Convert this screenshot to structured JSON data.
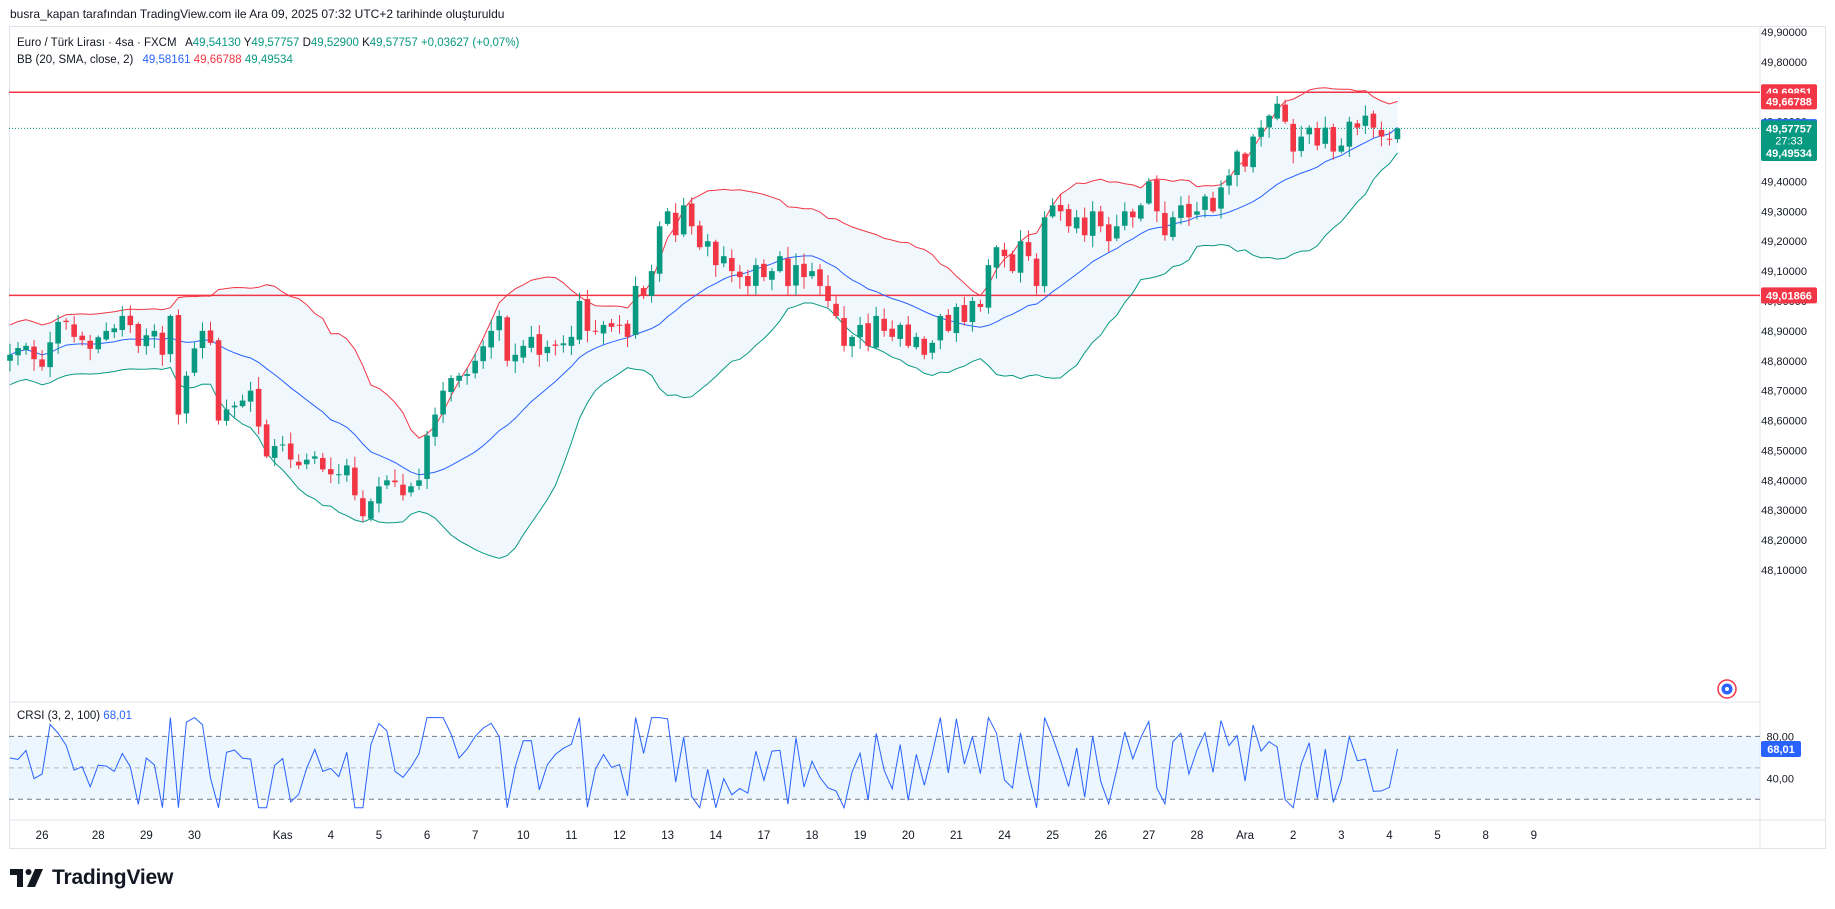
{
  "header": {
    "text": "busra_kapan tarafından TradingView.com ile Ara 09, 2025 07:32 UTC+2 tarihinde oluşturuldu"
  },
  "legend": {
    "symbol": "Euro / Türk Lirası · 4sa · FXCM",
    "open_label": "A",
    "open": "49,54130",
    "high_label": "Y",
    "high": "49,57757",
    "low_label": "D",
    "low": "49,52900",
    "close_label": "K",
    "close": "49,57757",
    "change": "+0,03627 (+0,07%)",
    "bb_label": "BB (20, SMA, close, 2)",
    "bb_basis": "49,58161",
    "bb_upper": "49,66788",
    "bb_lower": "49,49534"
  },
  "crsi_legend": {
    "label": "CRSI (3, 2, 100)",
    "value": "68,01"
  },
  "brand": {
    "name": "TradingView"
  },
  "colors": {
    "up": "#089981",
    "down": "#f23645",
    "basis": "#2962ff",
    "upper": "#f23645",
    "lower": "#089981",
    "band_fill": "#e3f2fd",
    "crsi": "#2962ff",
    "hline": "#f23645"
  },
  "chart_data": [
    {
      "type": "candlestick",
      "title": "Euro / Türk Lirası · 4sa · FXCM",
      "y_range": [
        48.03,
        49.95
      ],
      "y_ticks": [
        "49,90000",
        "49,80000",
        "49,70000",
        "49,60000",
        "49,50000",
        "49,40000",
        "49,30000",
        "49,20000",
        "49,10000",
        "49,00000",
        "48,90000",
        "48,80000",
        "48,70000",
        "48,60000",
        "48,50000",
        "48,40000",
        "48,30000",
        "48,20000",
        "48,10000"
      ],
      "y_tick_values": [
        49.9,
        49.8,
        49.7,
        49.6,
        49.5,
        49.4,
        49.3,
        49.2,
        49.1,
        49.0,
        48.9,
        48.8,
        48.7,
        48.6,
        48.5,
        48.4,
        48.3,
        48.2,
        48.1
      ],
      "x_labels": [
        "26",
        "28",
        "29",
        "30",
        "Kas",
        "4",
        "5",
        "6",
        "7",
        "10",
        "11",
        "12",
        "13",
        "14",
        "17",
        "18",
        "19",
        "20",
        "21",
        "24",
        "25",
        "26",
        "27",
        "28",
        "Ara",
        "2",
        "3",
        "4",
        "5",
        "8",
        "9"
      ],
      "x_label_bars": [
        4,
        11,
        17,
        23,
        34,
        40,
        46,
        52,
        58,
        64,
        70,
        76,
        82,
        88,
        94,
        100,
        106,
        112,
        118,
        124,
        130,
        136,
        142,
        148,
        154,
        160,
        166,
        172,
        178,
        184,
        190
      ],
      "horizontal_lines": [
        49.69851,
        49.01866
      ],
      "price_badges": [
        {
          "label": "49,69851",
          "value": 49.69851,
          "color": "#f23645"
        },
        {
          "label": "49,66788",
          "value": 49.66788,
          "color": "#f23645"
        },
        {
          "label": "49,58161",
          "value": 49.58161,
          "color": "#2962ff"
        },
        {
          "label": "49,57757",
          "sub": "27:33",
          "value": 49.57757,
          "color": "#089981"
        },
        {
          "label": "49,49534",
          "value": 49.49534,
          "color": "#089981"
        },
        {
          "label": "49,01866",
          "value": 49.01866,
          "color": "#f23645"
        }
      ],
      "bb_basis_last": 49.58161,
      "bb_upper_last": 49.66788,
      "bb_lower_last": 49.49534,
      "close_anchors": [
        [
          0,
          48.82
        ],
        [
          2,
          48.85
        ],
        [
          4,
          48.78
        ],
        [
          6,
          48.93
        ],
        [
          8,
          48.88
        ],
        [
          10,
          48.84
        ],
        [
          12,
          48.9
        ],
        [
          14,
          48.95
        ],
        [
          16,
          48.85
        ],
        [
          18,
          48.9
        ],
        [
          19,
          48.82
        ],
        [
          20,
          48.95
        ],
        [
          21,
          48.62
        ],
        [
          22,
          48.75
        ],
        [
          24,
          48.9
        ],
        [
          25,
          48.86
        ],
        [
          26,
          48.6
        ],
        [
          28,
          48.65
        ],
        [
          30,
          48.7
        ],
        [
          31,
          48.58
        ],
        [
          32,
          48.48
        ],
        [
          34,
          48.52
        ],
        [
          36,
          48.45
        ],
        [
          38,
          48.48
        ],
        [
          40,
          48.42
        ],
        [
          42,
          48.45
        ],
        [
          43,
          48.35
        ],
        [
          44,
          48.28
        ],
        [
          45,
          48.33
        ],
        [
          47,
          48.4
        ],
        [
          49,
          48.35
        ],
        [
          50,
          48.38
        ],
        [
          51,
          48.4
        ],
        [
          52,
          48.55
        ],
        [
          53,
          48.62
        ],
        [
          54,
          48.7
        ],
        [
          56,
          48.75
        ],
        [
          58,
          48.8
        ],
        [
          60,
          48.9
        ],
        [
          61,
          48.95
        ],
        [
          62,
          48.8
        ],
        [
          63,
          48.82
        ],
        [
          64,
          48.85
        ],
        [
          65,
          48.88
        ],
        [
          66,
          48.82
        ],
        [
          68,
          48.85
        ],
        [
          70,
          48.88
        ],
        [
          71,
          49.0
        ],
        [
          72,
          48.9
        ],
        [
          74,
          48.92
        ],
        [
          76,
          48.92
        ],
        [
          77,
          48.88
        ],
        [
          78,
          49.05
        ],
        [
          79,
          49.02
        ],
        [
          80,
          49.1
        ],
        [
          81,
          49.25
        ],
        [
          82,
          49.3
        ],
        [
          83,
          49.22
        ],
        [
          84,
          49.32
        ],
        [
          85,
          49.25
        ],
        [
          86,
          49.18
        ],
        [
          87,
          49.2
        ],
        [
          88,
          49.12
        ],
        [
          89,
          49.15
        ],
        [
          90,
          49.1
        ],
        [
          91,
          49.08
        ],
        [
          92,
          49.05
        ],
        [
          93,
          49.12
        ],
        [
          94,
          49.08
        ],
        [
          95,
          49.1
        ],
        [
          96,
          49.15
        ],
        [
          97,
          49.05
        ],
        [
          98,
          49.12
        ],
        [
          99,
          49.08
        ],
        [
          100,
          49.1
        ],
        [
          101,
          49.05
        ],
        [
          102,
          49.0
        ],
        [
          103,
          48.95
        ],
        [
          104,
          48.85
        ],
        [
          105,
          48.88
        ],
        [
          106,
          48.92
        ],
        [
          107,
          48.85
        ],
        [
          108,
          48.95
        ],
        [
          109,
          48.9
        ],
        [
          110,
          48.88
        ],
        [
          111,
          48.92
        ],
        [
          112,
          48.85
        ],
        [
          113,
          48.88
        ],
        [
          114,
          48.82
        ],
        [
          115,
          48.86
        ],
        [
          116,
          48.95
        ],
        [
          117,
          48.9
        ],
        [
          118,
          48.98
        ],
        [
          119,
          48.93
        ],
        [
          120,
          49.0
        ],
        [
          121,
          48.98
        ],
        [
          122,
          49.12
        ],
        [
          123,
          49.18
        ],
        [
          124,
          49.15
        ],
        [
          125,
          49.1
        ],
        [
          126,
          49.2
        ],
        [
          127,
          49.15
        ],
        [
          128,
          49.05
        ],
        [
          129,
          49.28
        ],
        [
          130,
          49.32
        ],
        [
          131,
          49.3
        ],
        [
          132,
          49.25
        ],
        [
          133,
          49.28
        ],
        [
          134,
          49.22
        ],
        [
          135,
          49.3
        ],
        [
          136,
          49.25
        ],
        [
          137,
          49.2
        ],
        [
          138,
          49.25
        ],
        [
          139,
          49.3
        ],
        [
          140,
          49.28
        ],
        [
          141,
          49.32
        ],
        [
          142,
          49.4
        ],
        [
          143,
          49.3
        ],
        [
          144,
          49.22
        ],
        [
          145,
          49.28
        ],
        [
          146,
          49.32
        ],
        [
          147,
          49.28
        ],
        [
          148,
          49.3
        ],
        [
          149,
          49.35
        ],
        [
          150,
          49.3
        ],
        [
          151,
          49.38
        ],
        [
          152,
          49.42
        ],
        [
          153,
          49.5
        ],
        [
          154,
          49.45
        ],
        [
          155,
          49.55
        ],
        [
          156,
          49.58
        ],
        [
          157,
          49.62
        ],
        [
          158,
          49.66
        ],
        [
          159,
          49.6
        ],
        [
          160,
          49.5
        ],
        [
          161,
          49.55
        ],
        [
          162,
          49.58
        ],
        [
          163,
          49.52
        ],
        [
          164,
          49.58
        ],
        [
          165,
          49.5
        ],
        [
          166,
          49.52
        ],
        [
          167,
          49.6
        ],
        [
          168,
          49.58
        ],
        [
          169,
          49.62
        ],
        [
          170,
          49.58
        ],
        [
          171,
          49.55
        ],
        [
          172,
          49.54
        ],
        [
          173,
          49.58
        ]
      ]
    },
    {
      "type": "line",
      "title": "CRSI (3, 2, 100)",
      "y_ticks": [
        "80,00",
        "40,00"
      ],
      "y_tick_values": [
        80,
        40
      ],
      "y_range": [
        5,
        110
      ],
      "band": [
        20,
        80
      ],
      "mid": 50,
      "last_value": 68.01,
      "last_label": "68,01"
    }
  ]
}
